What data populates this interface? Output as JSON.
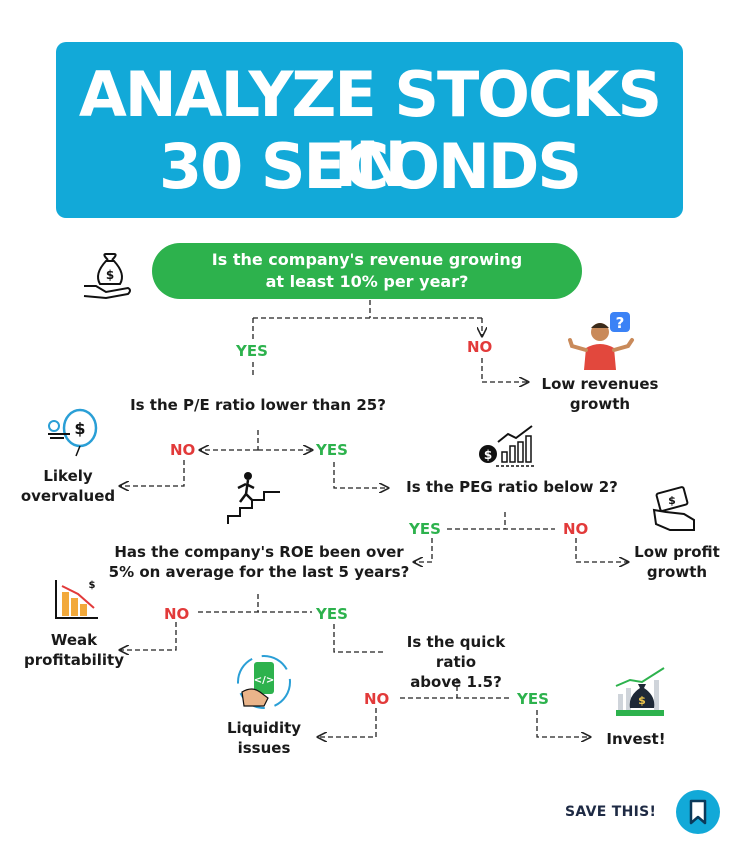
{
  "header": {
    "line1": "ANALYZE STOCKS IN",
    "line2": "30 SECONDS"
  },
  "q1": {
    "line1": "Is the company's revenue growing",
    "line2": "at least 10% per year?"
  },
  "q2": "Is the P/E ratio lower than 25?",
  "q3": "Is the PEG ratio below 2?",
  "q4": {
    "line1": "Has the company's ROE been over",
    "line2": "5% on average for the last 5 years?"
  },
  "q5": {
    "line1": "Is the quick ratio",
    "line2": "above 1.5?"
  },
  "labels": {
    "yes": "YES",
    "no": "NO"
  },
  "outcomes": {
    "low_revenue": {
      "line1": "Low revenues",
      "line2": "growth"
    },
    "overvalued": {
      "line1": "Likely",
      "line2": "overvalued"
    },
    "low_profit": {
      "line1": "Low profit",
      "line2": "growth"
    },
    "weak_profit": {
      "line1": "Weak",
      "line2": "profitability"
    },
    "liquidity": {
      "line1": "Liquidity",
      "line2": "issues"
    },
    "invest": "Invest!"
  },
  "footer": {
    "save_label": "SAVE THIS!"
  },
  "colors": {
    "title_bg": "#12a9d8",
    "pill_bg": "#2db24d",
    "yes": "#2db24d",
    "no": "#e23a3a"
  },
  "icons": [
    "money-bag-hand-icon",
    "confused-person-icon",
    "balloon-dollar-icon",
    "stock-chart-icon",
    "stairs-climber-icon",
    "cash-hand-icon",
    "declining-coins-icon",
    "phone-cycle-icon",
    "money-bag-chart-icon",
    "bookmark-icon"
  ]
}
